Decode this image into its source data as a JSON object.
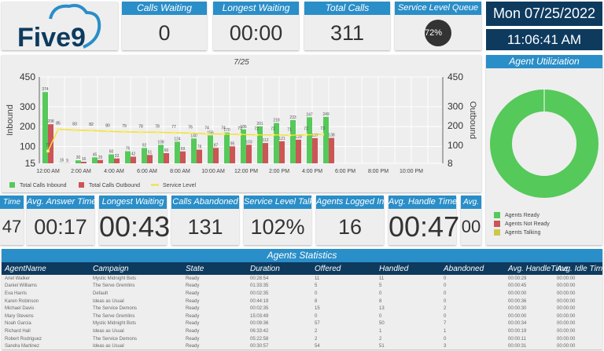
{
  "logo": {
    "text": "Five9"
  },
  "top_kpis": [
    {
      "label": "Calls Waiting",
      "value": "0"
    },
    {
      "label": "Longest Waiting",
      "value": "00:00"
    },
    {
      "label": "Total Calls",
      "value": "311"
    },
    {
      "label": "Service Level Queue",
      "value": "72%"
    }
  ],
  "date": "Mon 07/25/2022",
  "time": "11:06:41 AM",
  "colors": {
    "accent": "#2a8ec8",
    "dark": "#0e3a5e",
    "inbound": "#55c95a",
    "outbound": "#cc5555",
    "service_level": "#f3e034"
  },
  "chart_data": {
    "type": "bar",
    "title": "7/25",
    "ylabel": "Inbound",
    "y2label": "Outbound",
    "ylim": [
      15,
      450
    ],
    "y2lim": [
      8,
      450
    ],
    "yticks": [
      15,
      100,
      200,
      300,
      450
    ],
    "y2ticks": [
      8,
      100,
      200,
      300,
      450
    ],
    "xticks": [
      "12:00 AM",
      "2:00 AM",
      "4:00 AM",
      "6:00 AM",
      "8:00 AM",
      "10:00 AM",
      "12:00 PM",
      "2:00 PM",
      "4:00 PM",
      "6:00 PM",
      "8:00 PM",
      "10:00 PM"
    ],
    "x_hours": [
      0,
      1,
      2,
      3,
      4,
      5,
      6,
      7,
      8,
      9,
      10,
      11,
      12,
      13,
      14,
      15,
      16,
      17
    ],
    "series": [
      {
        "name": "Total Calls Inbound",
        "type": "bar",
        "values": [
          374,
          16,
          30,
          45,
          60,
          76,
          92,
          108,
          124,
          140,
          156,
          170,
          186,
          201,
          218,
          233,
          247,
          249
        ]
      },
      {
        "name": "Total Calls Outbound",
        "type": "bar",
        "values": [
          208,
          9,
          16,
          25,
          33,
          42,
          51,
          60,
          69,
          78,
          87,
          95,
          103,
          112,
          121,
          129,
          137,
          138
        ]
      },
      {
        "name": "Service Level",
        "type": "line",
        "values": [
          77,
          85,
          83,
          82,
          80,
          79,
          78,
          78,
          77,
          76,
          74,
          74,
          73,
          72,
          72,
          71,
          72,
          73
        ]
      }
    ],
    "legend": "bottom",
    "grid": true
  },
  "kpis": [
    {
      "label": "Time",
      "value": "47"
    },
    {
      "label": "Avg. Answer Time",
      "value": "00:17"
    },
    {
      "label": "Longest Waiting",
      "value": "00:43"
    },
    {
      "label": "Calls Abandoned",
      "value": "131"
    },
    {
      "label": "Service Level Talk",
      "value": "102%"
    },
    {
      "label": "Agents Logged In",
      "value": "16"
    },
    {
      "label": "Avg. Handle Time",
      "value": "00:47"
    },
    {
      "label": "Avg.",
      "value": "00"
    }
  ],
  "util": {
    "title": "Agent Utiliziation",
    "legend": [
      "Agents Ready",
      "Agents Not Ready",
      "Agents Talking"
    ],
    "ready_fraction": 1.0
  },
  "stats": {
    "title": "Agents Statistics",
    "columns": [
      "AgentName",
      "Campaign",
      "State",
      "Duration",
      "Offered",
      "Handled",
      "Abandoned",
      "Avg. HandleTime",
      "Avg. Idle Time"
    ],
    "rows": [
      [
        "Ariel Walker",
        "Mystic Midnight Bots",
        "Ready",
        "00:28:54",
        "11",
        "11",
        "0",
        "00:00:29",
        "00:00:00"
      ],
      [
        "Daniel Williams",
        "The Serve Gremlins",
        "Ready",
        "01:33:35",
        "5",
        "5",
        "0",
        "00:00:45",
        "00:00:00"
      ],
      [
        "Eva Harris",
        "Default",
        "Ready",
        "00:02:35",
        "0",
        "0",
        "0",
        "00:00:00",
        "00:00:00"
      ],
      [
        "Karen Robinson",
        "Ideas as Usual",
        "Ready",
        "00:44:19",
        "8",
        "8",
        "0",
        "00:00:36",
        "00:00:00"
      ],
      [
        "Michael Davis",
        "The Service Demons",
        "Ready",
        "00:02:35",
        "15",
        "13",
        "2",
        "00:00:30",
        "00:00:00"
      ],
      [
        "Mary Stevens",
        "The Serve Gremlins",
        "Ready",
        "15:03:49",
        "0",
        "0",
        "0",
        "00:00:00",
        "00:00:00"
      ],
      [
        "Noah Garcia",
        "Mystic Midnight Bots",
        "Ready",
        "00:09:36",
        "57",
        "50",
        "7",
        "00:00:34",
        "00:00:00"
      ],
      [
        "Richard Hall",
        "Ideas as Usual",
        "Ready",
        "06:33:42",
        "2",
        "1",
        "1",
        "00:00:19",
        "00:00:00"
      ],
      [
        "Robert Rodriguez",
        "The Service Demons",
        "Ready",
        "05:22:58",
        "2",
        "2",
        "0",
        "00:00:11",
        "00:00:00"
      ],
      [
        "Sandra Martinez",
        "Ideas as Usual",
        "Ready",
        "00:30:57",
        "54",
        "51",
        "3",
        "00:00:31",
        "00:00:00"
      ]
    ]
  }
}
